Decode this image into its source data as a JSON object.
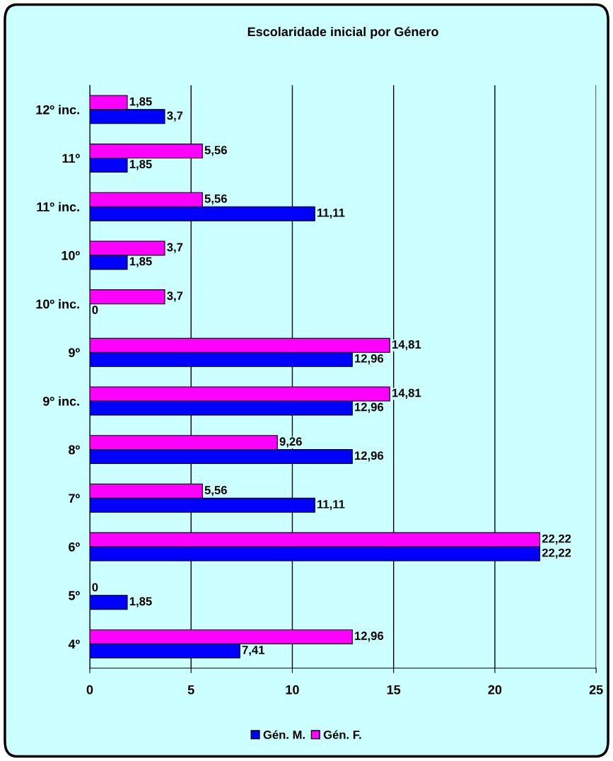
{
  "chart_data": {
    "type": "bar",
    "orientation": "horizontal",
    "title": "Escolaridade inicial por Género",
    "categories": [
      "12º inc.",
      "11º",
      "11º inc.",
      "10º",
      "10º inc.",
      "9º",
      "9º inc.",
      "8º",
      "7º",
      "6º",
      "5º",
      "4º"
    ],
    "series": [
      {
        "name": "Gén. M.",
        "color": "#0000ff",
        "values": [
          3.7,
          1.85,
          11.11,
          1.85,
          0,
          12.96,
          12.96,
          12.96,
          11.11,
          22.22,
          1.85,
          7.41
        ],
        "value_labels": [
          "3,7",
          "1,85",
          "11,11",
          "1,85",
          "0",
          "12,96",
          "12,96",
          "12,96",
          "11,11",
          "22,22",
          "1,85",
          "7,41"
        ]
      },
      {
        "name": "Gén. F.",
        "color": "#ff00ff",
        "values": [
          1.85,
          5.56,
          5.56,
          3.7,
          3.7,
          14.81,
          14.81,
          9.26,
          5.56,
          22.22,
          0,
          12.96
        ],
        "value_labels": [
          "1,85",
          "5,56",
          "5,56",
          "3,7",
          "3,7",
          "14,81",
          "14,81",
          "9,26",
          "5,56",
          "22,22",
          "0",
          "12,96"
        ]
      }
    ],
    "xlim": [
      0,
      25
    ],
    "xticks": [
      0,
      5,
      10,
      15,
      20,
      25
    ],
    "grid": "x",
    "legend": "bottom"
  }
}
